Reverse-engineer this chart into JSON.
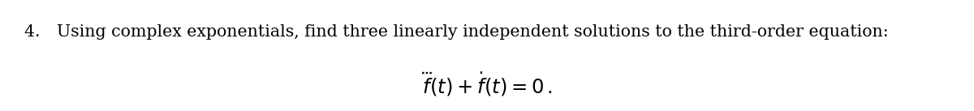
{
  "line1_prefix": "4.  Using complex exponentials, find three linearly independent solutions to the third-order equation:",
  "equation": "$\\dddot{f}(t) + \\dot{f}(t) = 0\\,.$",
  "text_color": "#000000",
  "bg_color": "#ffffff",
  "line1_fontsize": 14.8,
  "eq_fontsize": 17.5,
  "fig_width": 12.0,
  "fig_height": 1.37,
  "dpi": 100
}
